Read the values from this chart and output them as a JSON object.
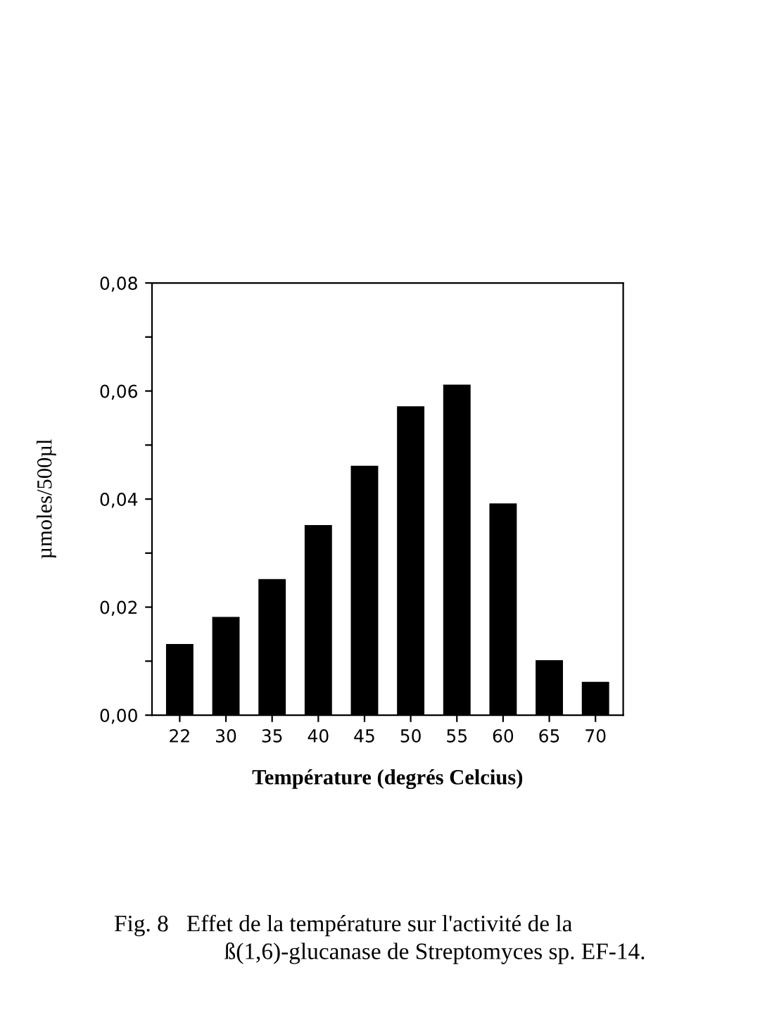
{
  "chart_data": {
    "type": "bar",
    "categories": [
      "22",
      "30",
      "35",
      "40",
      "45",
      "50",
      "55",
      "60",
      "65",
      "70"
    ],
    "values": [
      0.013,
      0.018,
      0.025,
      0.035,
      0.046,
      0.057,
      0.061,
      0.039,
      0.01,
      0.006
    ],
    "color": "#000000",
    "xlabel": "Température (degrés Celcius)",
    "ylabel": "µmoles/500µl",
    "ylim": [
      0,
      0.08
    ],
    "yticks": [
      {
        "value": 0,
        "label": "0,00"
      },
      {
        "value": 0.01,
        "label": null
      },
      {
        "value": 0.02,
        "label": "0,02"
      },
      {
        "value": 0.03,
        "label": null
      },
      {
        "value": 0.04,
        "label": "0,04"
      },
      {
        "value": 0.05,
        "label": null
      },
      {
        "value": 0.06,
        "label": "0,06"
      },
      {
        "value": 0.07,
        "label": null
      },
      {
        "value": 0.08,
        "label": "0,08"
      }
    ],
    "grid": false,
    "annotations": [
      "Fig. 8   Effet de la température sur l'activité de la",
      "ß(1,6)-glucanase de Streptomyces sp. EF-14."
    ]
  }
}
